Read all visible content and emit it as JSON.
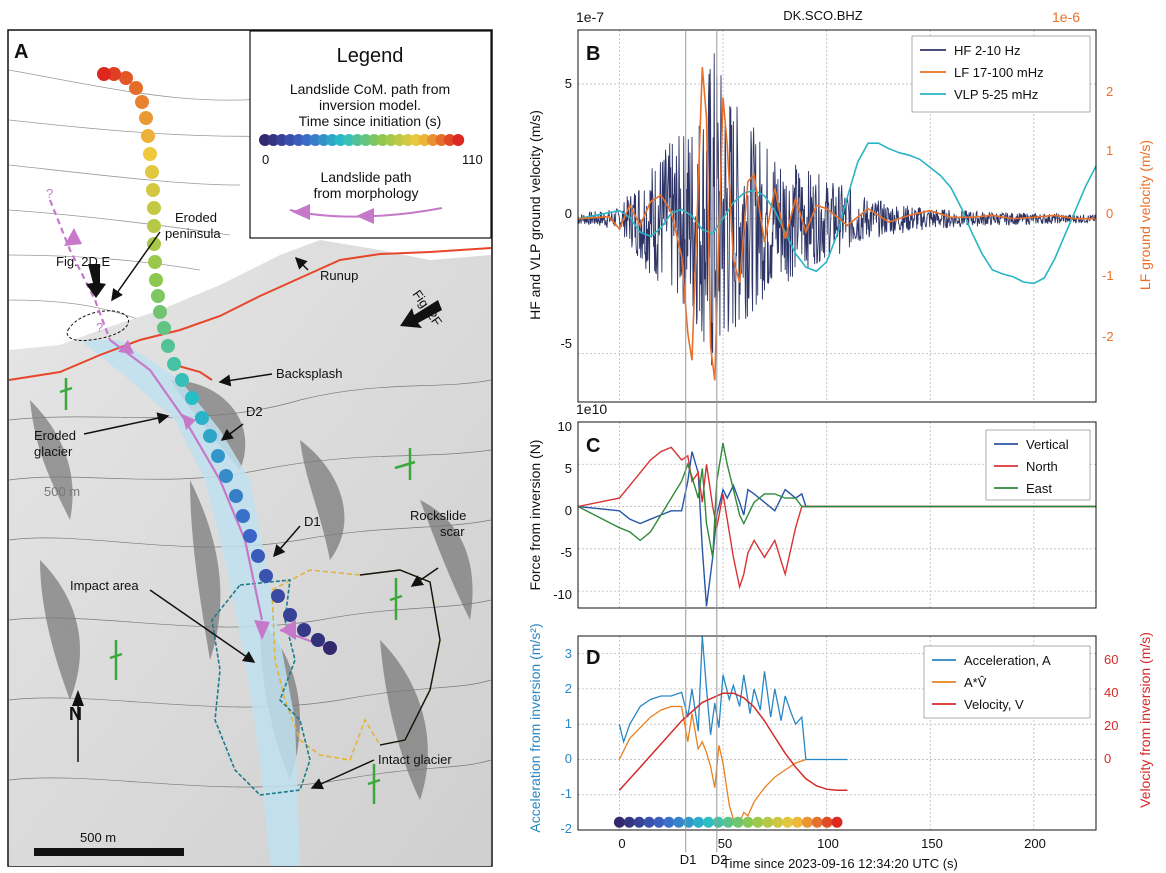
{
  "map": {
    "panel_label": "A",
    "legend": {
      "title": "Legend",
      "desc_line1": "Landslide CoM. path from",
      "desc_line2": "inversion model.",
      "desc_line3": "Time since initiation (s)",
      "scale_min": "0",
      "scale_max": "110",
      "morph_line1": "Landslide path",
      "morph_line2": "from morphology"
    },
    "labels": {
      "eroded_peninsula_1": "Eroded",
      "eroded_peninsula_2": "peninsula",
      "fig2de": "Fig. 2D,E",
      "runup": "Runup",
      "fig2f": "Fig. 2F",
      "backsplash": "Backsplash",
      "d2": "D2",
      "eroded_glacier_1": "Eroded",
      "eroded_glacier_2": "glacier",
      "contour_500": "500 m",
      "rockslide_1": "Rockslide",
      "rockslide_2": "scar",
      "d1": "D1",
      "impact_area": "Impact area",
      "intact_glacier": "Intact glacier",
      "north": "N",
      "scale_bar": "500 m",
      "q1": "?",
      "q2": "?"
    },
    "colors": {
      "runup_line": "#e8462a",
      "morph_path": "#c679c9",
      "rockslide_outline": "#e2b43a",
      "impact_outline": "#1c7c8c",
      "strike_dip": "#3aa83a",
      "glacier": "#bfe0ee"
    }
  },
  "chart_data": [
    {
      "panel_label": "B",
      "type": "line",
      "title": "DK.SCO.BHZ",
      "ylabel_left": "HF and VLP ground velocity (m/s)",
      "ylabel_right": "LF ground velocity (m/s)",
      "offset_left": "1e-7",
      "offset_right": "1e-6",
      "ylim_left": [
        -6.8,
        7
      ],
      "ylim_right": [
        -2.72,
        2.8
      ],
      "yticks_left": [
        "5",
        "0",
        "-5"
      ],
      "yticks_right": [
        "2",
        "1",
        "0",
        "-1",
        "-2"
      ],
      "legend_position": "top-right",
      "series": [
        {
          "name": "HF 2-10 Hz",
          "color": "#2e3566",
          "axis": "left",
          "envelope_t": [
            -20,
            0,
            10,
            20,
            30,
            40,
            45,
            50,
            60,
            70,
            80,
            90,
            100,
            110,
            120,
            130,
            150,
            180,
            230
          ],
          "envelope_amp": [
            0.2,
            0.4,
            1.6,
            2.6,
            3.2,
            4.5,
            6.8,
            5.5,
            3.8,
            3.0,
            2.4,
            1.9,
            1.5,
            1.2,
            0.8,
            0.6,
            0.4,
            0.25,
            0.15
          ]
        },
        {
          "name": "LF 17-100 mHz",
          "color": "#e8702a",
          "axis": "right",
          "t": [
            -20,
            -5,
            0,
            5,
            10,
            15,
            20,
            25,
            30,
            33,
            35,
            38,
            40,
            42,
            44,
            46,
            48,
            50,
            52,
            55,
            58,
            62,
            65,
            70,
            75,
            80,
            85,
            90,
            95,
            100,
            110,
            120,
            130,
            140,
            150,
            160,
            170,
            180,
            190,
            200,
            210,
            220,
            230
          ],
          "values": [
            0,
            0.03,
            -0.15,
            0.2,
            -0.1,
            0.25,
            0.35,
            0.1,
            -0.55,
            -1.7,
            -2.1,
            0.5,
            2.25,
            1.5,
            -1.9,
            -2.4,
            -0.3,
            1.8,
            1.1,
            -0.6,
            -0.95,
            0.55,
            0.65,
            -0.35,
            0.45,
            -0.3,
            0.3,
            -0.2,
            0.2,
            0.15,
            -0.1,
            0.15,
            -0.05,
            0.05,
            0.12,
            0.02,
            0.02,
            0.05,
            0,
            0.02,
            0.05,
            0,
            0
          ]
        },
        {
          "name": "VLP 5-25 mHz",
          "color": "#2ab5c5",
          "axis": "left",
          "t": [
            -20,
            -10,
            0,
            5,
            10,
            15,
            20,
            25,
            30,
            35,
            40,
            45,
            50,
            55,
            60,
            65,
            70,
            75,
            80,
            85,
            90,
            95,
            100,
            105,
            110,
            115,
            120,
            125,
            130,
            135,
            140,
            145,
            150,
            155,
            160,
            165,
            170,
            175,
            180,
            185,
            190,
            195,
            200,
            205,
            210,
            215,
            220,
            225,
            230
          ],
          "values": [
            0,
            0.15,
            0.3,
            0.05,
            -0.5,
            -0.65,
            -0.35,
            0.2,
            0.35,
            0.1,
            -0.4,
            -0.55,
            0,
            0.6,
            0.95,
            1.05,
            0.85,
            0.3,
            -0.5,
            -1.3,
            -1.8,
            -1.95,
            -1.6,
            -0.6,
            0.8,
            2.1,
            2.8,
            2.8,
            2.6,
            2.45,
            2.35,
            2.2,
            1.9,
            1.6,
            1.15,
            0.4,
            -0.5,
            -1.3,
            -1.9,
            -2.05,
            -2.15,
            -2.35,
            -2.4,
            -2.2,
            -1.5,
            -0.6,
            0.3,
            1.2,
            1.95
          ]
        }
      ],
      "xlim": [
        -20,
        230
      ]
    },
    {
      "panel_label": "C",
      "type": "line",
      "ylabel": "Force from inversion (N)",
      "offset": "1e10",
      "ylim": [
        -12,
        10
      ],
      "yticks": [
        "10",
        "5",
        "0",
        "-5",
        "-10"
      ],
      "legend_position": "top-right",
      "xlim": [
        -20,
        230
      ],
      "t": [
        -20,
        0,
        5,
        10,
        15,
        20,
        25,
        30,
        33,
        35,
        38,
        40,
        42,
        45,
        47,
        50,
        52,
        55,
        58,
        60,
        62,
        65,
        70,
        75,
        80,
        85,
        88,
        90,
        100,
        230
      ],
      "series": [
        {
          "name": "Vertical",
          "color": "#2855a8",
          "values": [
            0,
            -0.5,
            -1.5,
            -2,
            -1.5,
            -1,
            -0.5,
            -0.5,
            3,
            6.5,
            4,
            -5,
            -11.8,
            -6,
            -1,
            2,
            1,
            2.5,
            0.5,
            -1,
            2,
            1.5,
            0.5,
            -0.5,
            2,
            1,
            1.5,
            0,
            0,
            0
          ]
        },
        {
          "name": "North",
          "color": "#d93232",
          "values": [
            0,
            1,
            2.5,
            4,
            5.5,
            6.5,
            7,
            5.5,
            6,
            3,
            4,
            0.5,
            5,
            0,
            -2.5,
            1.5,
            -1.5,
            -6,
            -9.5,
            -8,
            -5.5,
            -4,
            -6,
            -4,
            -8,
            -2.5,
            0,
            0,
            0,
            0
          ]
        },
        {
          "name": "East",
          "color": "#2f8a3a",
          "values": [
            0,
            -2.5,
            -3,
            -4,
            -3,
            -1,
            1,
            3,
            5,
            3.5,
            1,
            4.5,
            -2,
            -6,
            3,
            7.5,
            5,
            2,
            -1,
            -2,
            -1,
            0.5,
            1.5,
            1.5,
            1,
            1,
            0,
            0,
            0,
            0
          ]
        }
      ]
    },
    {
      "panel_label": "D",
      "type": "line",
      "ylabel_left": "Acceleration from inversion (m/s²)",
      "ylabel_right": "Velocity from inversion (m/s)",
      "ylim_left": [
        -2,
        3.5
      ],
      "ylim_right": [
        -17.14,
        66.7
      ],
      "yticks_left": [
        "3",
        "2",
        "1",
        "0",
        "-1",
        "-2"
      ],
      "yticks_right": [
        "60",
        "40",
        "20",
        "0"
      ],
      "legend_position": "top-right",
      "xlabel": "Time since 2023-09-16 12:34:20 UTC (s)",
      "xticks": [
        "0",
        "50",
        "100",
        "150",
        "200"
      ],
      "xlim": [
        -20,
        230
      ],
      "vlines": [
        {
          "label": "D1",
          "x": 32
        },
        {
          "label": "D2",
          "x": 47
        }
      ],
      "series": [
        {
          "name": "Acceleration, A",
          "color": "#2a87c4",
          "axis": "left",
          "t": [
            0,
            2,
            5,
            10,
            15,
            20,
            25,
            30,
            33,
            35,
            38,
            40,
            42,
            44,
            46,
            48,
            50,
            53,
            55,
            58,
            60,
            63,
            65,
            68,
            70,
            73,
            75,
            78,
            80,
            83,
            85,
            88,
            90,
            95,
            100,
            105,
            110
          ],
          "values": [
            1.0,
            0.5,
            1.0,
            1.5,
            1.7,
            1.8,
            1.8,
            1.9,
            1.2,
            2.0,
            0.8,
            3.5,
            2.0,
            0.7,
            1.6,
            0.9,
            2.4,
            1.7,
            2.1,
            1.5,
            2.4,
            1.3,
            2.0,
            1.4,
            2.5,
            1.2,
            2.0,
            1.1,
            1.8,
            1.3,
            1.0,
            1.2,
            0,
            0,
            0,
            0,
            0
          ]
        },
        {
          "name": "A*V̂",
          "color": "#e8801f",
          "axis": "left",
          "t": [
            0,
            5,
            10,
            15,
            20,
            25,
            30,
            33,
            35,
            38,
            40,
            42,
            44,
            46,
            48,
            50,
            53,
            55,
            58,
            60,
            62,
            65,
            70,
            75,
            80,
            85,
            90
          ],
          "values": [
            0,
            0.6,
            0.9,
            1.2,
            1.4,
            1.5,
            1.5,
            0.5,
            1.3,
            0.3,
            0.5,
            0.2,
            -0.2,
            -0.8,
            0.4,
            -0.1,
            -1.3,
            -1.7,
            -1.8,
            -1.5,
            -1.6,
            -1.2,
            -0.8,
            -0.5,
            -0.3,
            -0.1,
            0
          ]
        },
        {
          "name": "Velocity, V",
          "color": "#d42a2a",
          "axis": "right",
          "t": [
            0,
            10,
            20,
            30,
            40,
            45,
            50,
            55,
            60,
            65,
            70,
            75,
            80,
            85,
            90,
            95,
            100,
            105,
            110
          ],
          "values": [
            0,
            10,
            20,
            30,
            38,
            40,
            42,
            42,
            40,
            36,
            30,
            23,
            16,
            10,
            5,
            2,
            0.5,
            0,
            0
          ]
        }
      ],
      "colorbar_dots": 23
    }
  ]
}
